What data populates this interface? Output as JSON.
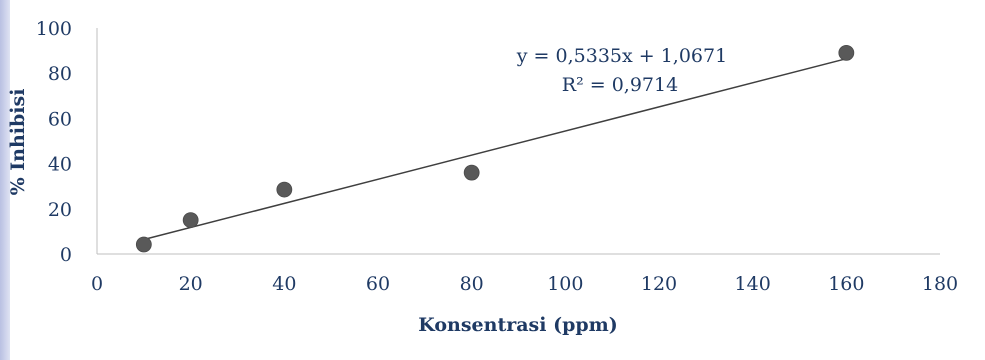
{
  "chart_data": {
    "type": "scatter",
    "xlabel": "Konsentrasi (ppm)",
    "ylabel": "% Inhibisi",
    "xlim": [
      0,
      180
    ],
    "ylim": [
      0,
      100
    ],
    "x_ticks": [
      0,
      20,
      40,
      60,
      80,
      100,
      120,
      140,
      160,
      180
    ],
    "y_ticks": [
      0,
      20,
      40,
      60,
      80,
      100
    ],
    "points": [
      {
        "x": 10,
        "y": 4.2
      },
      {
        "x": 20,
        "y": 15.0
      },
      {
        "x": 40,
        "y": 28.5
      },
      {
        "x": 80,
        "y": 36.0
      },
      {
        "x": 160,
        "y": 89.0
      }
    ],
    "trendline": {
      "slope": 0.5335,
      "intercept": 1.0671,
      "x_range": [
        10,
        160
      ],
      "equation": "y = 0,5335x + 1,0671",
      "r_squared": "R² = 0,9714"
    },
    "marker_color": "#595959",
    "line_color": "#3f3f3f",
    "text_color": "#1f3a64",
    "grid": false
  }
}
